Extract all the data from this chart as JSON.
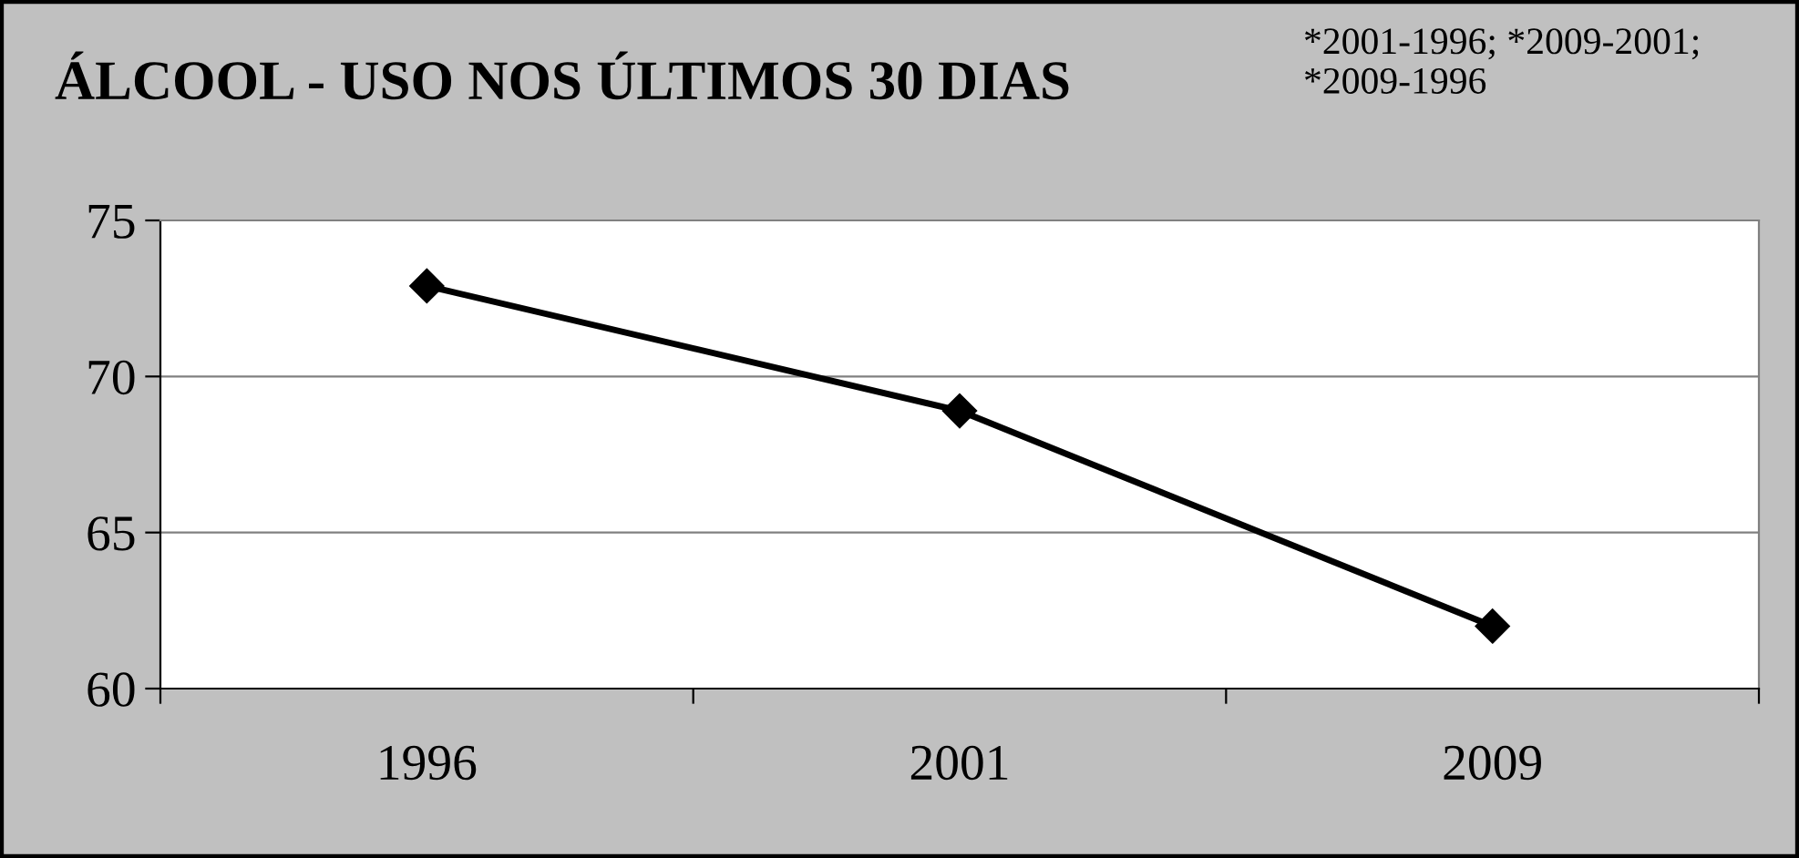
{
  "chart_data": {
    "type": "line",
    "title": "ÁLCOOL - USO NOS ÚLTIMOS 30 DIAS",
    "annotations": [
      "*2001-1996; *2009-2001;\n*2009-1996"
    ],
    "categories": [
      "1996",
      "2001",
      "2009"
    ],
    "series": [
      {
        "color": "#000000",
        "values": [
          72.9,
          68.9,
          62.0
        ]
      }
    ],
    "ylim": [
      60,
      75
    ],
    "yticks": [
      60,
      65,
      70,
      75
    ],
    "grid": "y",
    "marker": "diamond",
    "line_style": "solid",
    "legend": false
  }
}
